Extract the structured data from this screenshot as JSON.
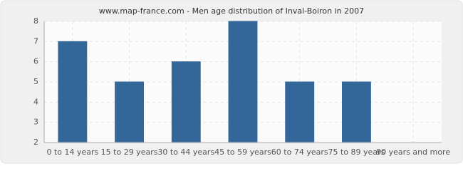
{
  "chart_data": {
    "type": "bar",
    "title": "www.map-france.com - Men age distribution of Inval-Boiron in 2007",
    "categories": [
      "0 to 14 years",
      "15 to 29 years",
      "30 to 44 years",
      "45 to 59 years",
      "60 to 74 years",
      "75 to 89 years",
      "90 years and more"
    ],
    "values": [
      7,
      5,
      6,
      8,
      5,
      5,
      2
    ],
    "color": "#336699",
    "ylim": [
      2,
      8
    ],
    "yticks": [
      2,
      3,
      4,
      5,
      6,
      7,
      8
    ],
    "grid": true
  }
}
